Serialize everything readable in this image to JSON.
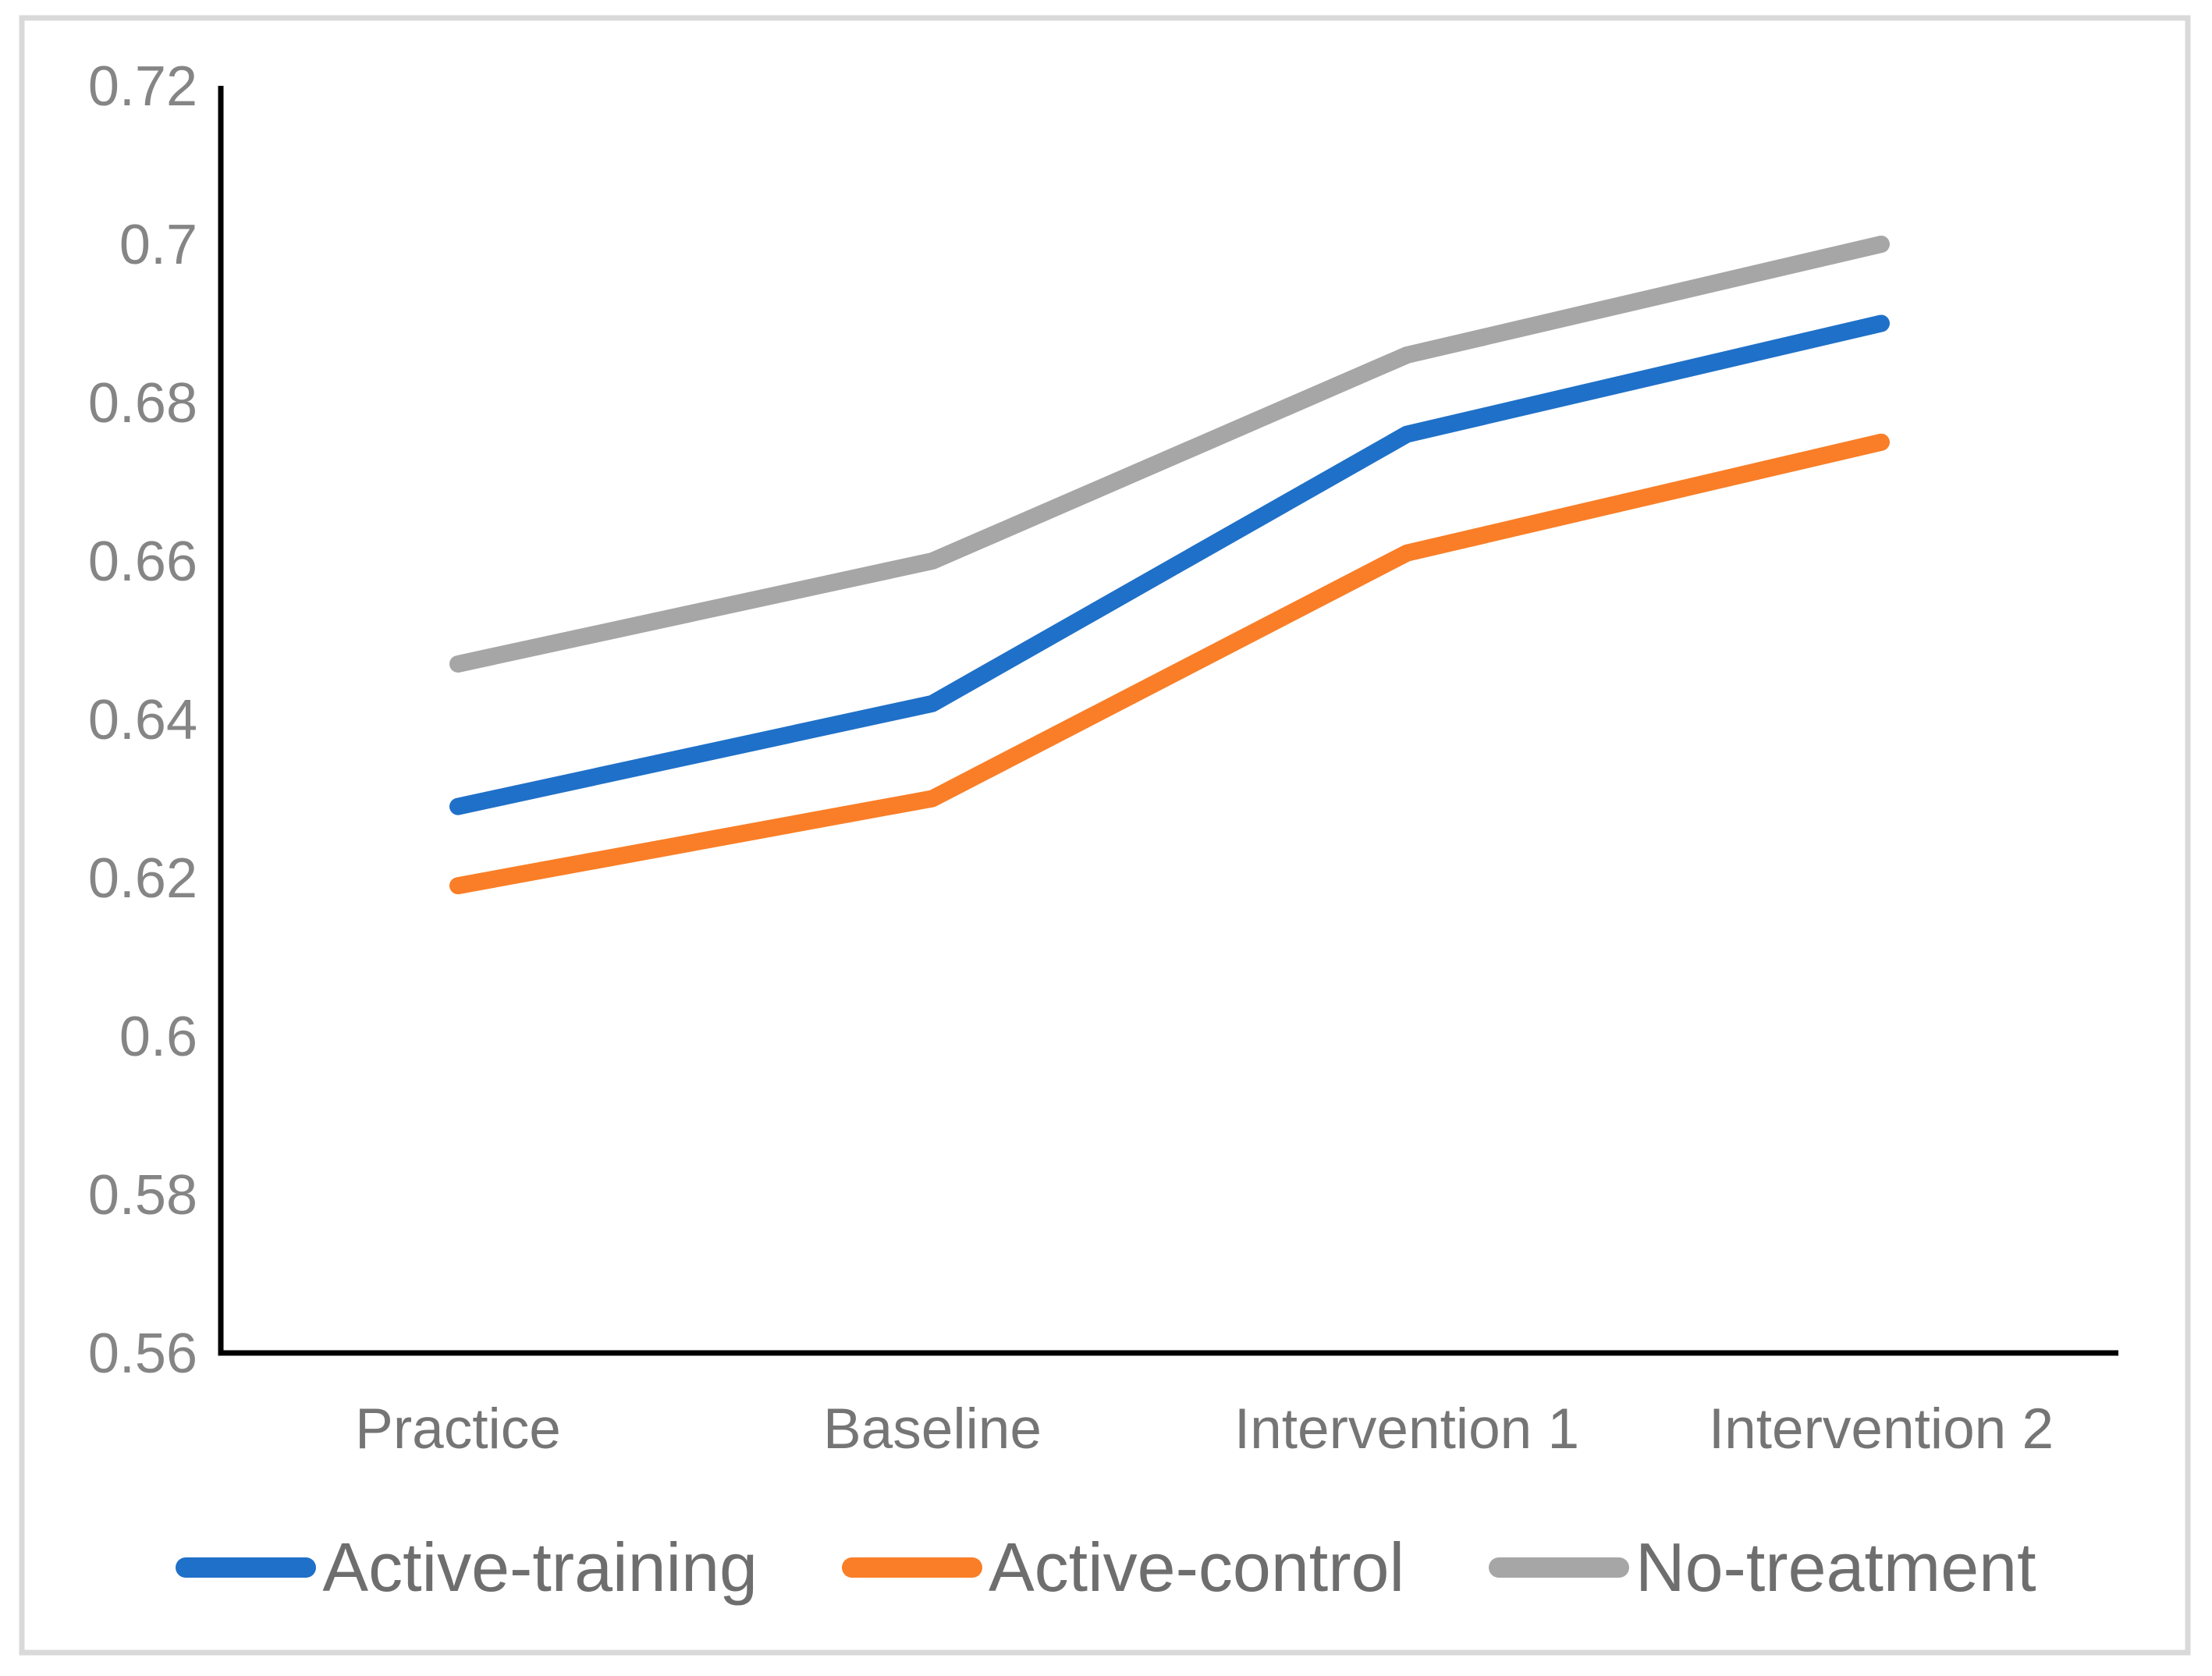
{
  "figure": {
    "background_color": "#FFFFFF",
    "border_color": "#D9D9D9",
    "axis_line_color": "#000000",
    "tick_label_color": "#858585",
    "category_label_color": "#757575",
    "legend_text_color": "#6E6E6E"
  },
  "chart_data": {
    "type": "line",
    "title": "",
    "xlabel": "",
    "ylabel": "",
    "categories": [
      "Practice",
      "Baseline",
      "Intervention 1",
      "Intervention 2"
    ],
    "series": [
      {
        "name": "Active-training",
        "color": "#1F70C8",
        "values": [
          0.629,
          0.642,
          0.676,
          0.69
        ]
      },
      {
        "name": "Active-control",
        "color": "#F97E27",
        "values": [
          0.619,
          0.63,
          0.661,
          0.675
        ]
      },
      {
        "name": "No-treatment",
        "color": "#A6A6A6",
        "values": [
          0.647,
          0.66,
          0.686,
          0.7
        ]
      }
    ],
    "ylim": [
      0.56,
      0.72
    ],
    "ytick_step": 0.02,
    "ytick_labels": [
      "0.72",
      "0.7",
      "0.68",
      "0.66",
      "0.64",
      "0.62",
      "0.6",
      "0.58",
      "0.56"
    ],
    "grid": false,
    "legend_position": "bottom-center"
  }
}
